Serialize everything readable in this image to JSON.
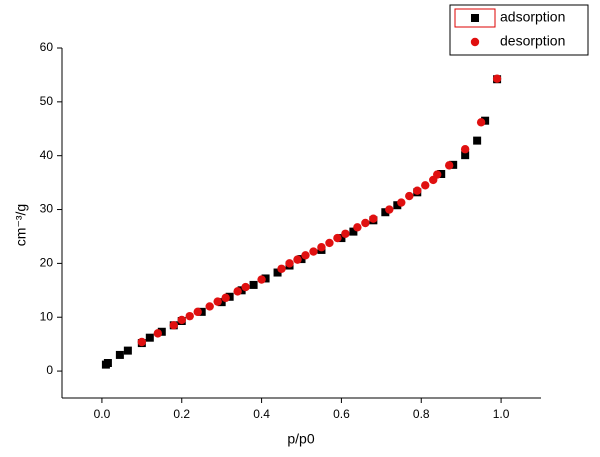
{
  "chart_data": {
    "type": "scatter",
    "x_label": "p/p0",
    "y_label": "cm⁻³/g",
    "xlim": [
      -0.1,
      1.1
    ],
    "ylim": [
      -5,
      60
    ],
    "xticks": [
      {
        "value": 0,
        "label": "0.0"
      },
      0.2,
      0.4,
      0.6,
      0.8,
      {
        "value": 1,
        "label": "1.0"
      }
    ],
    "yticks": [
      0,
      10,
      20,
      30,
      40,
      50,
      60
    ],
    "legend": "top-right",
    "series": [
      {
        "name": "adsorption",
        "color": "#000000",
        "marker": "square",
        "x": [
          0.01,
          0.015,
          0.045,
          0.065,
          0.1,
          0.12,
          0.15,
          0.18,
          0.2,
          0.25,
          0.3,
          0.32,
          0.35,
          0.38,
          0.41,
          0.44,
          0.47,
          0.5,
          0.55,
          0.6,
          0.63,
          0.68,
          0.71,
          0.74,
          0.79,
          0.85,
          0.88,
          0.91,
          0.94,
          0.96,
          0.99
        ],
        "values": [
          1.2,
          1.5,
          3,
          3.8,
          5.2,
          6.2,
          7.3,
          8.5,
          9.3,
          11,
          12.8,
          13.8,
          15,
          16,
          17.2,
          18.3,
          19.6,
          20.8,
          22.5,
          24.7,
          25.9,
          28,
          29.5,
          30.8,
          33.2,
          36.6,
          38.3,
          40.1,
          42.8,
          46.5,
          54.2
        ]
      },
      {
        "name": "desorption",
        "color": "#e01010",
        "marker": "circle",
        "x": [
          0.1,
          0.14,
          0.18,
          0.2,
          0.22,
          0.24,
          0.27,
          0.29,
          0.31,
          0.34,
          0.36,
          0.4,
          0.45,
          0.47,
          0.49,
          0.51,
          0.53,
          0.55,
          0.57,
          0.59,
          0.61,
          0.64,
          0.66,
          0.68,
          0.72,
          0.75,
          0.77,
          0.79,
          0.81,
          0.83,
          0.84,
          0.87,
          0.91,
          0.95,
          0.99
        ],
        "values": [
          5.4,
          7,
          8.5,
          9.5,
          10.2,
          11,
          12,
          12.9,
          13.6,
          14.8,
          15.6,
          17,
          19,
          20,
          20.7,
          21.5,
          22.2,
          23,
          23.8,
          24.7,
          25.5,
          26.7,
          27.5,
          28.3,
          30,
          31.3,
          32.5,
          33.5,
          34.5,
          35.5,
          36.5,
          38.2,
          41.2,
          46.2,
          54.3
        ]
      }
    ]
  }
}
